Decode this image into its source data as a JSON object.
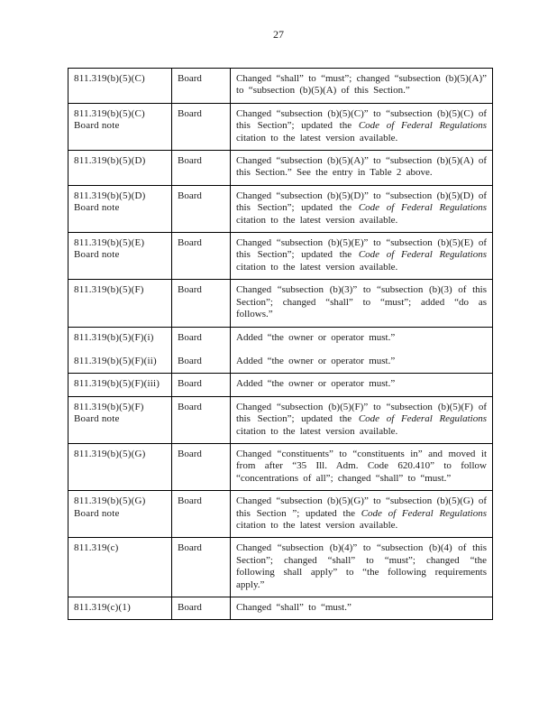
{
  "page_number": "27",
  "table": {
    "columns": [
      "section",
      "actor",
      "change"
    ],
    "rows": [
      {
        "entries": [
          {
            "section": [
              "811.319(b)(5)(C)"
            ],
            "actor": "Board",
            "change": [
              {
                "t": "Changed “shall” to “must”; changed “subsection (b)(5)(A)” to “subsection (b)(5)(A) of this Section.”"
              }
            ]
          }
        ]
      },
      {
        "entries": [
          {
            "section": [
              "811.319(b)(5)(C)",
              "Board note"
            ],
            "actor": "Board",
            "change": [
              {
                "t": "Changed “subsection (b)(5)(C)” to “subsection (b)(5)(C) of this Section”; updated the "
              },
              {
                "t": "Code of Federal Regulations",
                "i": true
              },
              {
                "t": " citation to the latest version available."
              }
            ]
          }
        ]
      },
      {
        "entries": [
          {
            "section": [
              "811.319(b)(5)(D)"
            ],
            "actor": "Board",
            "change": [
              {
                "t": "Changed “subsection (b)(5)(A)” to “subsection (b)(5)(A) of this Section.” See the entry in Table 2 above."
              }
            ]
          }
        ]
      },
      {
        "entries": [
          {
            "section": [
              "811.319(b)(5)(D)",
              "Board note"
            ],
            "actor": "Board",
            "change": [
              {
                "t": "Changed “subsection (b)(5)(D)” to “subsection (b)(5)(D) of this Section”; updated the "
              },
              {
                "t": "Code of Federal Regulations",
                "i": true
              },
              {
                "t": " citation to the latest version available."
              }
            ]
          }
        ]
      },
      {
        "entries": [
          {
            "section": [
              "811.319(b)(5)(E)",
              "Board note"
            ],
            "actor": "Board",
            "change": [
              {
                "t": "Changed “subsection (b)(5)(E)” to “subsection (b)(5)(E) of this Section”; updated the "
              },
              {
                "t": "Code of Federal Regulations",
                "i": true
              },
              {
                "t": " citation to the latest version available."
              }
            ]
          }
        ]
      },
      {
        "entries": [
          {
            "section": [
              "811.319(b)(5)(F)"
            ],
            "actor": "Board",
            "change": [
              {
                "t": "Changed “subsection (b)(3)” to “subsection (b)(3) of this Section”; changed “shall” to “must”; added “do as follows.”"
              }
            ]
          }
        ]
      },
      {
        "entries": [
          {
            "section": [
              "811.319(b)(5)(F)(i)"
            ],
            "actor": "Board",
            "change": [
              {
                "t": "Added “the owner or operator must.”"
              }
            ]
          },
          {
            "section": [
              "811.319(b)(5)(F)(ii)"
            ],
            "actor": "Board",
            "change": [
              {
                "t": "Added “the owner or operator must.”"
              }
            ]
          }
        ]
      },
      {
        "entries": [
          {
            "section": [
              "811.319(b)(5)(F)(iii)"
            ],
            "actor": "Board",
            "change": [
              {
                "t": "Added “the owner or operator must.”"
              }
            ]
          }
        ]
      },
      {
        "entries": [
          {
            "section": [
              "811.319(b)(5)(F)",
              "Board note"
            ],
            "actor": "Board",
            "change": [
              {
                "t": "Changed “subsection (b)(5)(F)” to “subsection (b)(5)(F) of this Section”; updated the "
              },
              {
                "t": "Code of Federal Regulations",
                "i": true
              },
              {
                "t": " citation to the latest version available."
              }
            ]
          }
        ]
      },
      {
        "entries": [
          {
            "section": [
              "811.319(b)(5)(G)"
            ],
            "actor": "Board",
            "change": [
              {
                "t": "Changed “constituents” to “constituents in” and moved it from after “35 Ill. Adm. Code 620.410” to follow “concentrations of all”; changed “shall” to “must.”"
              }
            ]
          }
        ]
      },
      {
        "entries": [
          {
            "section": [
              "811.319(b)(5)(G)",
              "Board note"
            ],
            "actor": "Board",
            "change": [
              {
                "t": "Changed “subsection (b)(5)(G)” to “subsection (b)(5)(G) of this Section ”; updated the "
              },
              {
                "t": "Code of Federal Regulations",
                "i": true
              },
              {
                "t": " citation to the latest version available."
              }
            ]
          }
        ]
      },
      {
        "entries": [
          {
            "section": [
              "811.319(c)"
            ],
            "actor": "Board",
            "change": [
              {
                "t": "Changed “subsection (b)(4)” to “subsection (b)(4) of this Section”; changed “shall” to “must”; changed “the following shall apply” to “the following requirements apply.”"
              }
            ]
          }
        ]
      },
      {
        "entries": [
          {
            "section": [
              "811.319(c)(1)"
            ],
            "actor": "Board",
            "change": [
              {
                "t": "Changed “shall” to “must.”"
              }
            ]
          }
        ]
      }
    ]
  }
}
